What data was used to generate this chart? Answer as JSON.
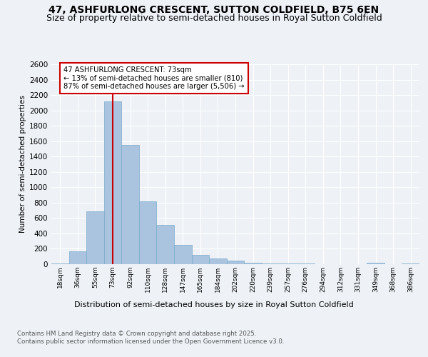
{
  "title": "47, ASHFURLONG CRESCENT, SUTTON COLDFIELD, B75 6EN",
  "subtitle": "Size of property relative to semi-detached houses in Royal Sutton Coldfield",
  "xlabel": "Distribution of semi-detached houses by size in Royal Sutton Coldfield",
  "ylabel": "Number of semi-detached properties",
  "footnote1": "Contains HM Land Registry data © Crown copyright and database right 2025.",
  "footnote2": "Contains public sector information licensed under the Open Government Licence v3.0.",
  "categories": [
    "18sqm",
    "36sqm",
    "55sqm",
    "73sqm",
    "92sqm",
    "110sqm",
    "128sqm",
    "147sqm",
    "165sqm",
    "184sqm",
    "202sqm",
    "220sqm",
    "239sqm",
    "257sqm",
    "276sqm",
    "294sqm",
    "312sqm",
    "331sqm",
    "349sqm",
    "368sqm",
    "386sqm"
  ],
  "values": [
    10,
    170,
    690,
    2120,
    1550,
    815,
    515,
    250,
    120,
    75,
    50,
    15,
    10,
    5,
    5,
    2,
    2,
    0,
    15,
    0,
    5
  ],
  "bar_color": "#aac4e0",
  "bar_edge_color": "#7aaac8",
  "property_line_x": 3,
  "property_line_color": "#cc0000",
  "annotation_title": "47 ASHFURLONG CRESCENT: 73sqm",
  "annotation_line1": "← 13% of semi-detached houses are smaller (810)",
  "annotation_line2": "87% of semi-detached houses are larger (5,506) →",
  "annotation_box_color": "#cc0000",
  "ylim": [
    0,
    2600
  ],
  "yticks": [
    0,
    200,
    400,
    600,
    800,
    1000,
    1200,
    1400,
    1600,
    1800,
    2000,
    2200,
    2400,
    2600
  ],
  "background_color": "#eef2f7",
  "grid_color": "#ffffff",
  "title_fontsize": 10,
  "subtitle_fontsize": 9
}
